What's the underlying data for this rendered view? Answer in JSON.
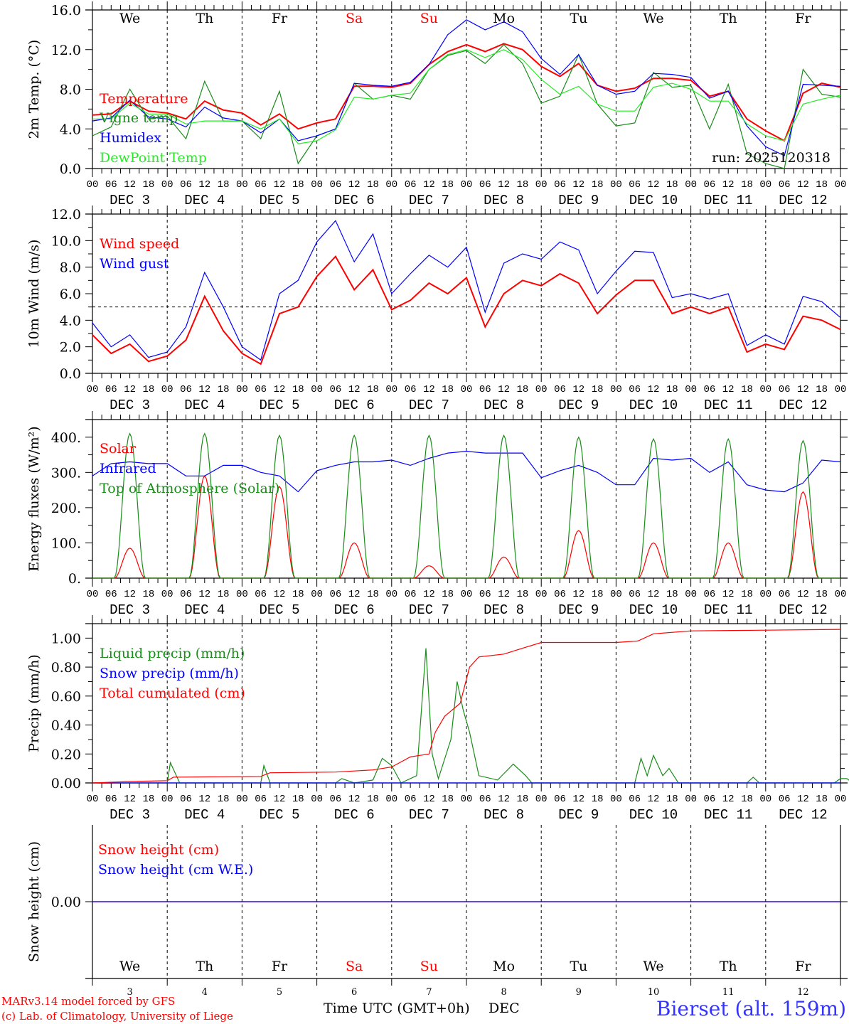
{
  "days": [
    "We",
    "Th",
    "Fr",
    "Sa",
    "Su",
    "Mo",
    "Tu",
    "We",
    "Th",
    "Fr"
  ],
  "weekend_days": [
    "Sa",
    "Su"
  ],
  "dates": [
    "3",
    "4",
    "5",
    "6",
    "7",
    "8",
    "9",
    "10",
    "11",
    "12"
  ],
  "month": "DEC",
  "hour_ticks": [
    "00",
    "06",
    "12",
    "18"
  ],
  "run_label": "run: 2025120318",
  "footer": {
    "model": "MARv3.14 model forced by GFS",
    "credit": "(c) Lab. of Climatology, University of Liege",
    "time_axis": "Time UTC (GMT+0h)",
    "month": "DEC",
    "station": "Bierset (alt. 159m)"
  },
  "colors": {
    "red": "#ff0000",
    "blue": "#0000ff",
    "darkgreen": "#1a8c1a",
    "lightgreen": "#22ee22",
    "weekend": "#ff0000"
  },
  "chart_data": [
    {
      "type": "line",
      "ylabel": "2m Temp. (°C)",
      "ylim": [
        0,
        16
      ],
      "yticks": [
        "0.0",
        "4.0",
        "8.0",
        "12.0",
        "16.0"
      ],
      "x_step_hours": 6,
      "series": [
        {
          "name": "Temperature",
          "color": "red",
          "values": [
            5.4,
            5.5,
            6.8,
            5.8,
            5.6,
            5.0,
            6.8,
            5.9,
            5.6,
            4.4,
            5.5,
            4.0,
            4.6,
            5.0,
            8.3,
            8.3,
            8.2,
            8.6,
            10.5,
            11.8,
            12.5,
            11.8,
            12.6,
            12.0,
            10.3,
            9.3,
            10.6,
            8.4,
            7.8,
            8.1,
            9.1,
            9.1,
            8.9,
            7.3,
            7.8,
            5.0,
            3.8,
            2.8,
            7.6,
            8.6,
            8.2
          ]
        },
        {
          "name": "Vigne temp",
          "color": "darkgreen",
          "values": [
            3.3,
            4.2,
            8.0,
            5.0,
            5.3,
            3.0,
            8.8,
            4.8,
            4.8,
            3.0,
            7.8,
            0.5,
            3.3,
            4.0,
            8.6,
            7.0,
            7.4,
            7.0,
            10.0,
            11.4,
            11.9,
            10.6,
            12.5,
            10.6,
            6.6,
            7.3,
            11.5,
            6.5,
            4.3,
            4.6,
            9.7,
            8.2,
            8.4,
            4.0,
            8.5,
            1.5,
            0.5,
            0.0,
            10.0,
            7.5,
            7.2
          ]
        },
        {
          "name": "Humidex",
          "color": "blue",
          "values": [
            4.8,
            5.1,
            6.9,
            5.2,
            5.0,
            4.2,
            6.2,
            5.1,
            4.8,
            3.6,
            5.0,
            2.8,
            3.3,
            4.0,
            8.6,
            8.4,
            8.3,
            8.7,
            10.5,
            13.5,
            15.0,
            14.0,
            14.8,
            13.8,
            11.1,
            9.5,
            11.5,
            8.4,
            7.5,
            7.8,
            9.6,
            9.5,
            9.2,
            7.1,
            7.8,
            4.3,
            2.2,
            1.3,
            8.5,
            8.4,
            8.3
          ]
        },
        {
          "name": "DewPoint Temp",
          "color": "lightgreen",
          "values": [
            5.0,
            5.0,
            6.6,
            5.5,
            5.5,
            4.5,
            4.8,
            4.8,
            4.8,
            4.0,
            5.0,
            2.5,
            2.8,
            3.9,
            7.2,
            7.0,
            7.4,
            7.6,
            10.0,
            11.5,
            12.0,
            11.2,
            12.0,
            11.0,
            9.0,
            7.5,
            8.3,
            6.5,
            5.8,
            5.8,
            8.2,
            8.6,
            8.0,
            6.8,
            6.8,
            4.5,
            3.3,
            2.8,
            6.5,
            7.0,
            7.4
          ]
        }
      ]
    },
    {
      "type": "line",
      "ylabel": "10m Wind (m/s)",
      "ylim": [
        0,
        12
      ],
      "yticks": [
        "0.0",
        "2.0",
        "4.0",
        "6.0",
        "8.0",
        "10.0",
        "12.0"
      ],
      "reference_line": 5,
      "x_step_hours": 6,
      "series": [
        {
          "name": "Wind speed",
          "color": "red",
          "values": [
            2.9,
            1.5,
            2.2,
            0.9,
            1.3,
            2.5,
            5.8,
            3.2,
            1.5,
            0.7,
            4.5,
            5.0,
            7.3,
            8.8,
            6.3,
            7.8,
            4.8,
            5.5,
            6.8,
            6.0,
            7.2,
            3.5,
            6.0,
            7.0,
            6.6,
            7.5,
            6.8,
            4.5,
            5.9,
            7.0,
            7.0,
            4.5,
            5.0,
            4.5,
            5.0,
            1.6,
            2.2,
            1.8,
            4.3,
            4.0,
            3.3
          ]
        },
        {
          "name": "Wind gust",
          "color": "blue",
          "values": [
            3.8,
            2.0,
            2.9,
            1.2,
            1.6,
            3.5,
            7.6,
            5.0,
            2.0,
            1.0,
            6.0,
            7.0,
            9.9,
            11.5,
            8.4,
            10.5,
            6.0,
            7.5,
            8.9,
            8.0,
            9.5,
            4.6,
            8.3,
            9.0,
            8.6,
            9.9,
            9.3,
            6.0,
            7.7,
            9.2,
            9.1,
            5.7,
            6.0,
            5.6,
            6.0,
            2.1,
            2.9,
            2.2,
            5.8,
            5.4,
            4.2
          ]
        }
      ]
    },
    {
      "type": "line",
      "ylabel": "Energy fluxes (W/m²)",
      "ylim": [
        0,
        450
      ],
      "yticks": [
        "0.",
        "100.",
        "200.",
        "300.",
        "400."
      ],
      "series": [
        {
          "name": "Solar",
          "color": "red",
          "daily_peak": [
            85,
            290,
            260,
            100,
            35,
            60,
            135,
            100,
            100,
            245
          ]
        },
        {
          "name": "Infrared",
          "color": "blue",
          "x_step_hours": 6,
          "values": [
            290,
            325,
            330,
            325,
            325,
            290,
            290,
            320,
            320,
            300,
            290,
            245,
            305,
            320,
            330,
            330,
            335,
            320,
            340,
            355,
            360,
            355,
            355,
            355,
            285,
            305,
            320,
            300,
            265,
            265,
            340,
            335,
            340,
            300,
            330,
            265,
            250,
            245,
            270,
            335,
            330
          ]
        },
        {
          "name": "Top of Atmosphere (Solar)",
          "color": "darkgreen",
          "daily_peak": [
            410,
            410,
            405,
            405,
            405,
            405,
            400,
            395,
            395,
            390
          ]
        }
      ]
    },
    {
      "type": "line",
      "ylabel": "Precip (mm/h)",
      "ylim": [
        0,
        1.1
      ],
      "yticks": [
        "0.00",
        "0.20",
        "0.40",
        "0.60",
        "0.80",
        "1.00"
      ],
      "series": [
        {
          "name": "Liquid precip (mm/h)",
          "color": "darkgreen",
          "points": [
            [
              0,
              0
            ],
            [
              24,
              0
            ],
            [
              25,
              0.14
            ],
            [
              28,
              0
            ],
            [
              54,
              0
            ],
            [
              55,
              0.12
            ],
            [
              57,
              0
            ],
            [
              78,
              0
            ],
            [
              80,
              0.03
            ],
            [
              84,
              0
            ],
            [
              90,
              0.02
            ],
            [
              93,
              0.17
            ],
            [
              96,
              0.12
            ],
            [
              99,
              0
            ],
            [
              104,
              0.05
            ],
            [
              107,
              0.93
            ],
            [
              109,
              0.2
            ],
            [
              111,
              0.03
            ],
            [
              115,
              0.3
            ],
            [
              117,
              0.7
            ],
            [
              119,
              0.5
            ],
            [
              121,
              0.35
            ],
            [
              124,
              0.05
            ],
            [
              130,
              0.02
            ],
            [
              135,
              0.13
            ],
            [
              139,
              0.05
            ],
            [
              141,
              0
            ],
            [
              174,
              0
            ],
            [
              176,
              0.17
            ],
            [
              178,
              0.05
            ],
            [
              180,
              0.19
            ],
            [
              183,
              0.05
            ],
            [
              185,
              0.1
            ],
            [
              188,
              0
            ],
            [
              210,
              0
            ],
            [
              212,
              0.04
            ],
            [
              214,
              0
            ],
            [
              238,
              0
            ],
            [
              240,
              0.03
            ],
            [
              242,
              0.03
            ],
            [
              244,
              0
            ]
          ]
        },
        {
          "name": "Snow precip (mm/h)",
          "color": "blue",
          "points": [
            [
              0,
              0
            ],
            [
              240,
              0
            ]
          ]
        },
        {
          "name": "Total cumulated (cm)",
          "color": "red",
          "points": [
            [
              0,
              0
            ],
            [
              12,
              0.01
            ],
            [
              24,
              0.015
            ],
            [
              26,
              0.04
            ],
            [
              54,
              0.045
            ],
            [
              57,
              0.07
            ],
            [
              78,
              0.075
            ],
            [
              90,
              0.09
            ],
            [
              96,
              0.11
            ],
            [
              102,
              0.18
            ],
            [
              108,
              0.2
            ],
            [
              110,
              0.35
            ],
            [
              113,
              0.46
            ],
            [
              118,
              0.55
            ],
            [
              121,
              0.8
            ],
            [
              124,
              0.87
            ],
            [
              132,
              0.89
            ],
            [
              138,
              0.93
            ],
            [
              144,
              0.97
            ],
            [
              168,
              0.97
            ],
            [
              175,
              0.98
            ],
            [
              180,
              1.03
            ],
            [
              192,
              1.05
            ],
            [
              216,
              1.055
            ],
            [
              240,
              1.06
            ]
          ]
        }
      ]
    },
    {
      "type": "line",
      "ylabel": "Snow height (cm)",
      "ylim": [
        -1,
        1
      ],
      "yticks": [
        "0.00"
      ],
      "series": [
        {
          "name": "Snow height (cm)",
          "color": "red",
          "points": [
            [
              0,
              0
            ],
            [
              240,
              0
            ]
          ]
        },
        {
          "name": "Snow height (cm W.E.)",
          "color": "blue",
          "points": [
            [
              0,
              0
            ],
            [
              240,
              0
            ]
          ]
        }
      ]
    }
  ]
}
